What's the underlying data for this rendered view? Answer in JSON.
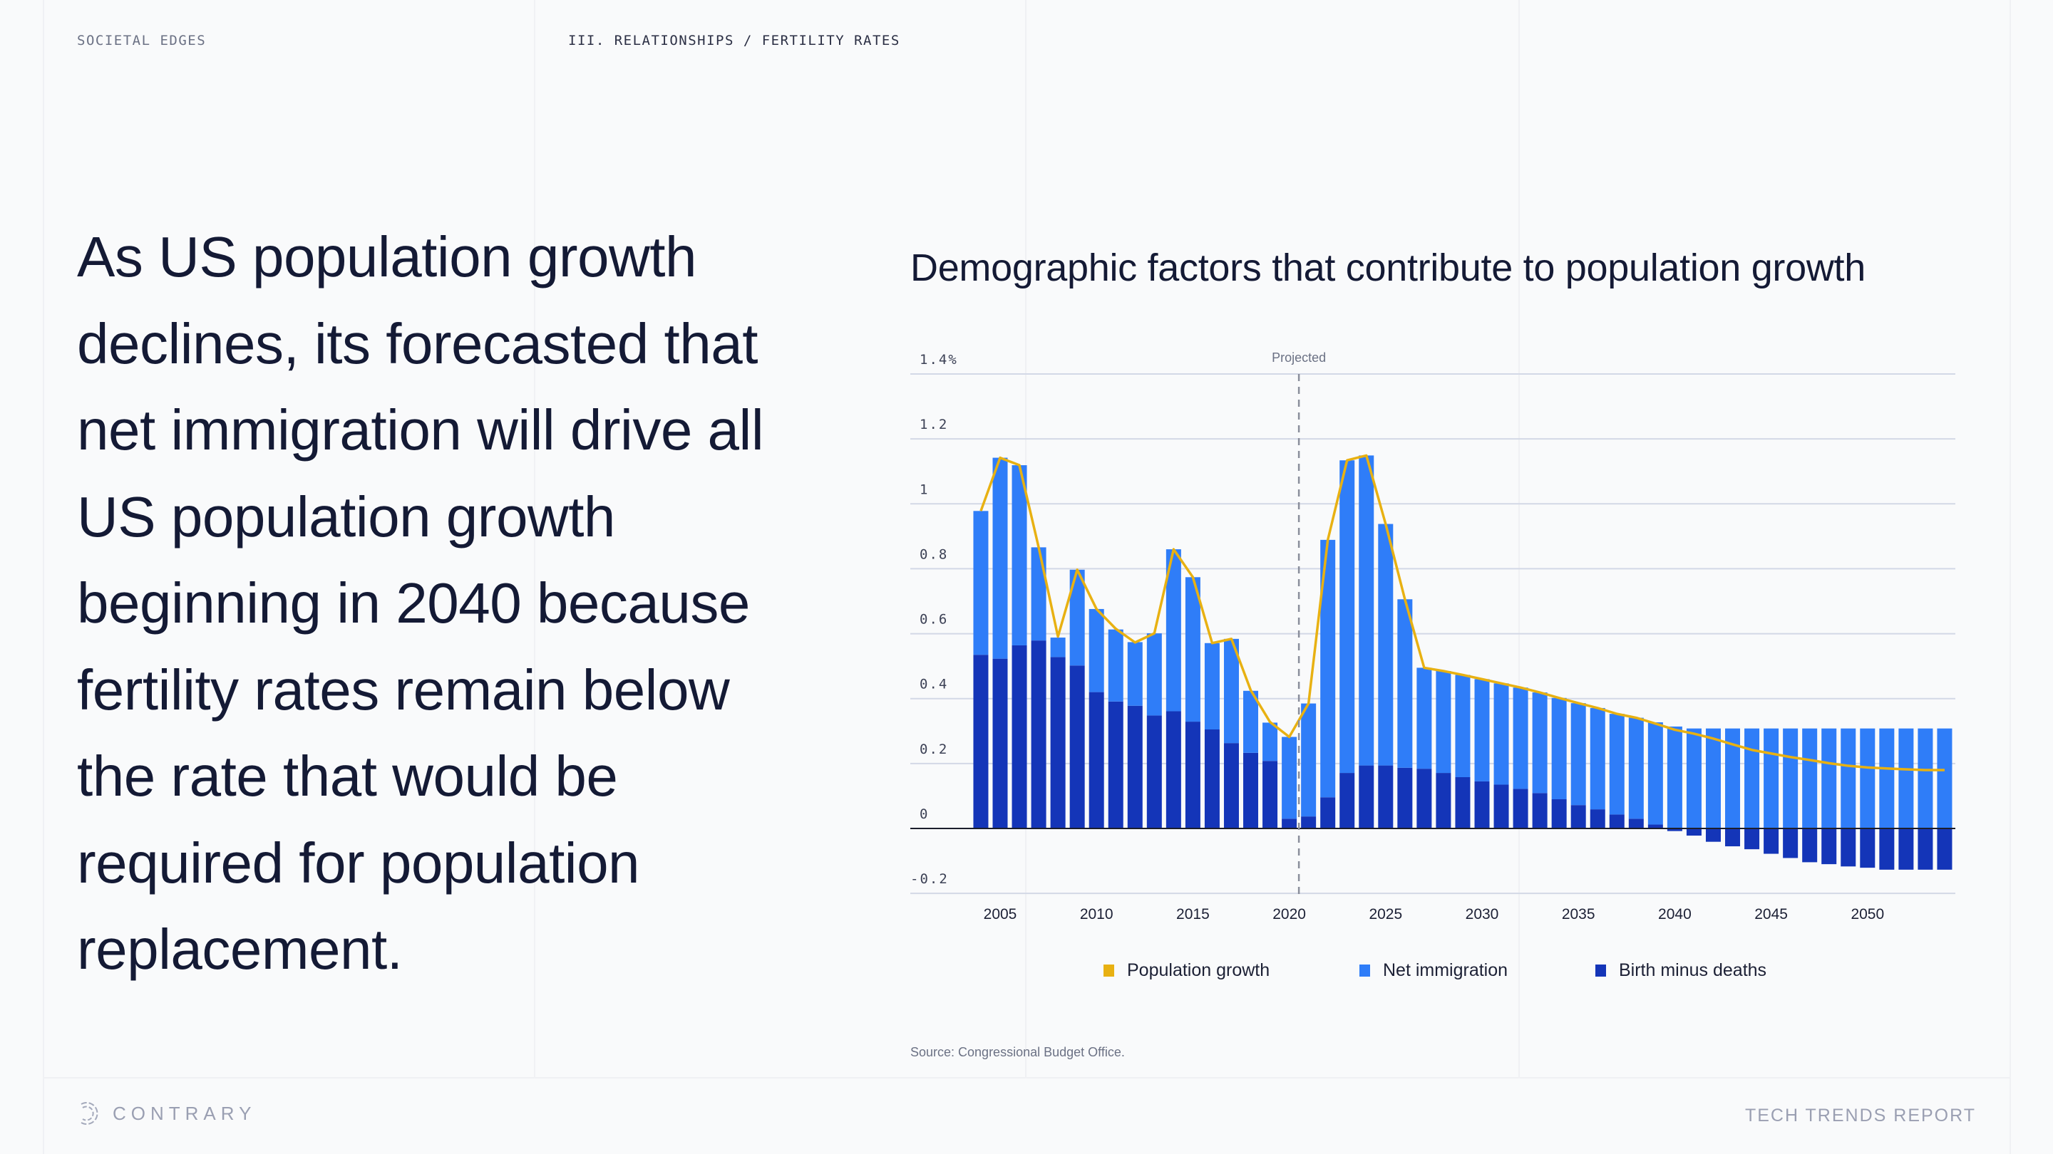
{
  "header": {
    "section": "SOCIETAL EDGES",
    "breadcrumb": "III. RELATIONSHIPS / FERTILITY RATES"
  },
  "headline": "As US population growth declines, its forecasted that net immigration will drive all US population growth beginning in 2040 because fertility rates remain below the rate that would be required for population replacement.",
  "colors": {
    "population_growth": "#e8b112",
    "net_immigration": "#2f7df8",
    "birth_minus_deaths": "#1435b8"
  },
  "chart_data": {
    "type": "bar",
    "stacked": true,
    "title": "Demographic factors that contribute to population growth",
    "xlabel": "",
    "ylabel": "",
    "ylim": [
      -0.2,
      1.4
    ],
    "y_ticks": [
      "1.4%",
      "1.2",
      "1",
      "0.8",
      "0.6",
      "0.4",
      "0.2",
      "0",
      "-0.2"
    ],
    "y_tick_values": [
      1.4,
      1.2,
      1.0,
      0.8,
      0.6,
      0.4,
      0.2,
      0,
      -0.2
    ],
    "x_ticks": [
      "2005",
      "2010",
      "2015",
      "2020",
      "2025",
      "2030",
      "2035",
      "2040",
      "2045",
      "2050"
    ],
    "grid": true,
    "legend_position": "bottom",
    "annotation": {
      "label": "Projected",
      "x": 2020.5
    },
    "x": [
      2004,
      2005,
      2006,
      2007,
      2008,
      2009,
      2010,
      2011,
      2012,
      2013,
      2014,
      2015,
      2016,
      2017,
      2018,
      2019,
      2020,
      2021,
      2022,
      2023,
      2024,
      2025,
      2026,
      2027,
      2028,
      2029,
      2030,
      2031,
      2032,
      2033,
      2034,
      2035,
      2036,
      2037,
      2038,
      2039,
      2040,
      2041,
      2042,
      2043,
      2044,
      2045,
      2046,
      2047,
      2048,
      2049,
      2050,
      2051,
      2052,
      2053,
      2054
    ],
    "series": [
      {
        "name": "Birth minus deaths",
        "kind": "bar",
        "values": [
          0.535,
          0.523,
          0.564,
          0.579,
          0.528,
          0.502,
          0.42,
          0.391,
          0.378,
          0.348,
          0.361,
          0.329,
          0.305,
          0.263,
          0.233,
          0.208,
          0.03,
          0.037,
          0.096,
          0.171,
          0.194,
          0.194,
          0.187,
          0.184,
          0.171,
          0.158,
          0.145,
          0.135,
          0.122,
          0.109,
          0.09,
          0.072,
          0.059,
          0.043,
          0.03,
          0.012,
          -0.008,
          -0.022,
          -0.041,
          -0.055,
          -0.064,
          -0.078,
          -0.091,
          -0.104,
          -0.11,
          -0.117,
          -0.121,
          -0.127,
          -0.127,
          -0.127,
          -0.127
        ]
      },
      {
        "name": "Net immigration",
        "kind": "bar",
        "values": [
          0.443,
          0.619,
          0.555,
          0.287,
          0.06,
          0.295,
          0.256,
          0.222,
          0.196,
          0.253,
          0.499,
          0.445,
          0.266,
          0.321,
          0.191,
          0.118,
          0.252,
          0.348,
          0.793,
          0.963,
          0.955,
          0.744,
          0.519,
          0.311,
          0.314,
          0.315,
          0.315,
          0.312,
          0.312,
          0.31,
          0.312,
          0.314,
          0.312,
          0.31,
          0.311,
          0.315,
          0.314,
          0.308,
          0.308,
          0.308,
          0.308,
          0.308,
          0.308,
          0.308,
          0.308,
          0.308,
          0.308,
          0.308,
          0.308,
          0.308,
          0.308
        ]
      },
      {
        "name": "Population growth",
        "kind": "line",
        "values": [
          0.978,
          1.142,
          1.119,
          0.866,
          0.591,
          0.797,
          0.676,
          0.615,
          0.573,
          0.601,
          0.86,
          0.774,
          0.571,
          0.584,
          0.426,
          0.328,
          0.282,
          0.385,
          0.889,
          1.134,
          1.149,
          0.938,
          0.706,
          0.495,
          0.485,
          0.473,
          0.46,
          0.447,
          0.434,
          0.419,
          0.402,
          0.386,
          0.371,
          0.353,
          0.341,
          0.323,
          0.304,
          0.292,
          0.277,
          0.259,
          0.242,
          0.231,
          0.22,
          0.211,
          0.201,
          0.193,
          0.188,
          0.185,
          0.182,
          0.18,
          0.18
        ]
      }
    ],
    "legend": [
      "Population growth",
      "Net immigration",
      "Birth minus deaths"
    ],
    "source": "Source: Congressional Budget Office."
  },
  "footer": {
    "brand": "CONTRARY",
    "report": "TECH TRENDS REPORT"
  }
}
